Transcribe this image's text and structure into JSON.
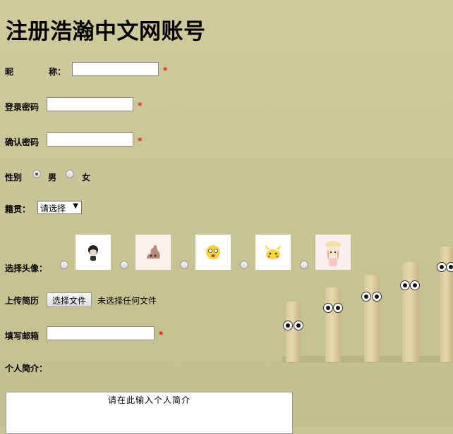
{
  "page_title": "注册浩瀚中文网账号",
  "required_mark": "*",
  "nickname": {
    "label_part1": "昵",
    "label_part2": "称：",
    "value": ""
  },
  "password": {
    "label": "登录密码",
    "value": ""
  },
  "confirm_password": {
    "label": "确认密码",
    "value": ""
  },
  "gender": {
    "label": "性别",
    "options": [
      "男",
      "女"
    ],
    "selected": "男"
  },
  "hometown": {
    "label": "籍贯：",
    "selected": "请选择"
  },
  "avatar": {
    "label": "选择头像：",
    "count": 5
  },
  "resume": {
    "label": "上传简历",
    "button": "选择文件",
    "status": "未选择任何文件"
  },
  "email": {
    "label": "填写邮箱",
    "value": ""
  },
  "bio": {
    "label": "个人简介：",
    "placeholder": "请在此输入个人简介"
  },
  "colors": {
    "background": "#c8c697",
    "required": "#e00000"
  }
}
